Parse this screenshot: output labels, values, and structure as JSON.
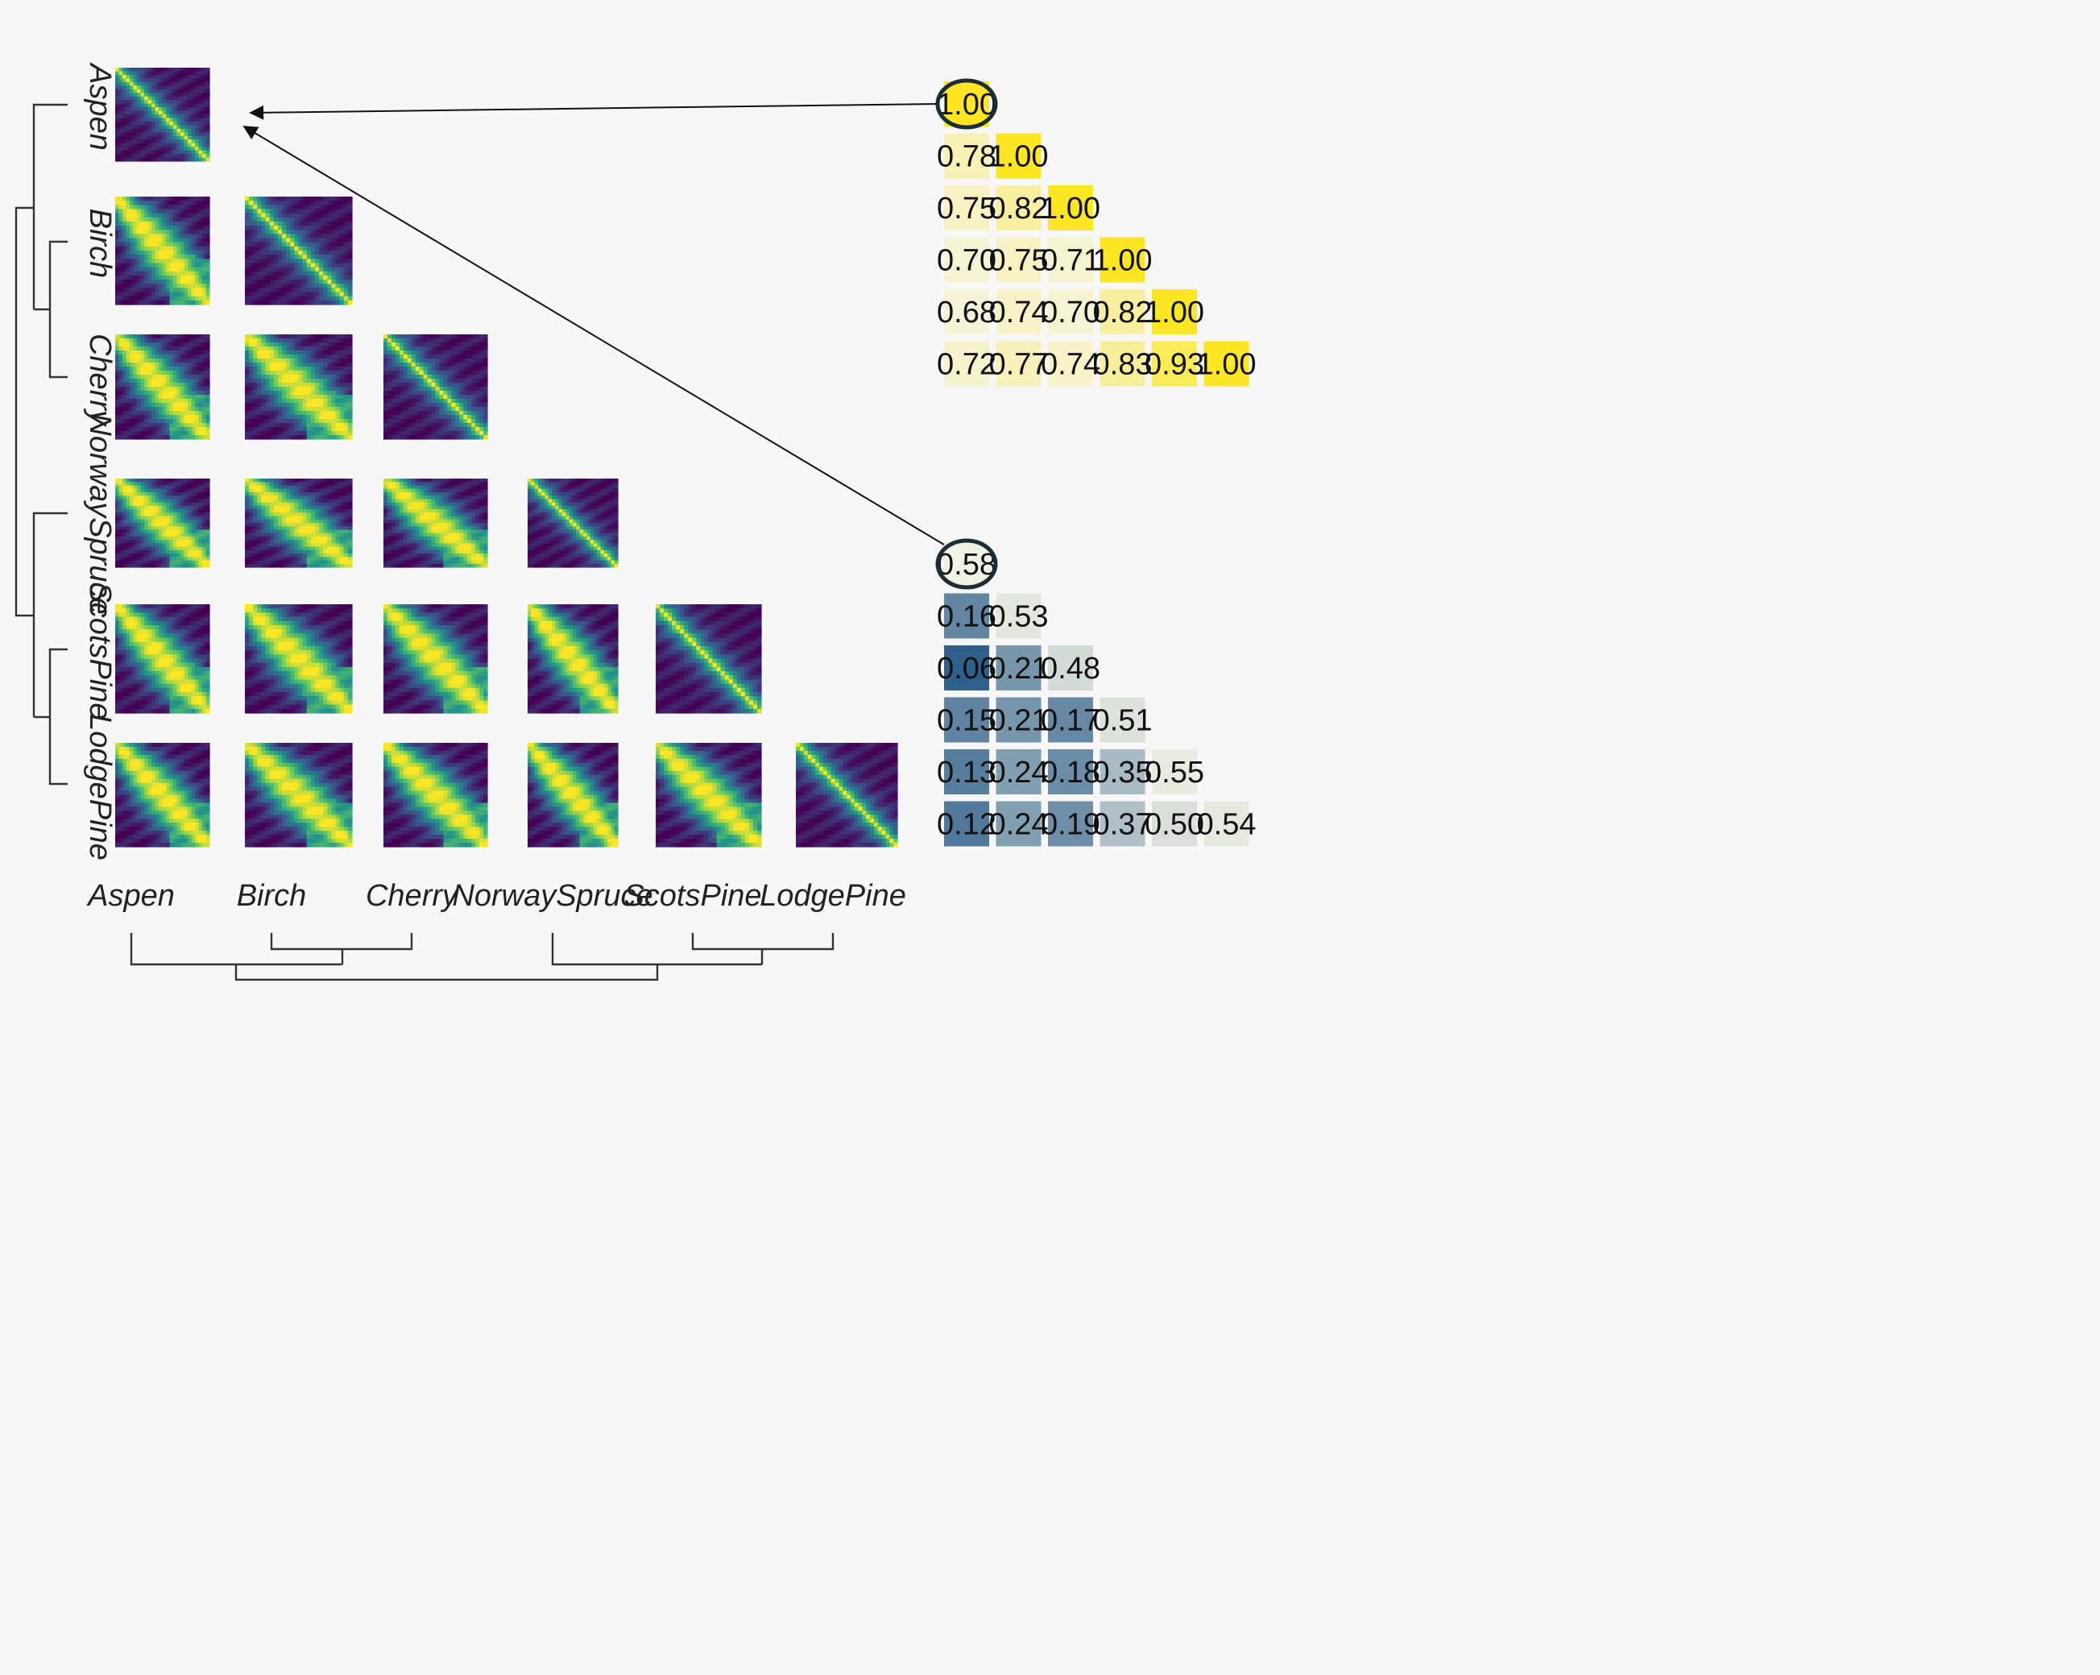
{
  "chart_data": [
    {
      "type": "heatmap",
      "description_role": "matrix grid of contact maps",
      "species": [
        "Aspen",
        "Birch",
        "Cherry",
        "NorwaySpruce",
        "ScotsPine",
        "LodgePine"
      ],
      "colorscale": [
        "#440154",
        "#3b528b",
        "#21918c",
        "#5ec962",
        "#fde725"
      ]
    },
    {
      "type": "table",
      "panel": "upper",
      "rows": [
        [
          "1.00"
        ],
        [
          "0.78",
          "1.00"
        ],
        [
          "0.75",
          "0.82",
          "1.00"
        ],
        [
          "0.70",
          "0.75",
          "0.71",
          "1.00"
        ],
        [
          "0.68",
          "0.74",
          "0.70",
          "0.82",
          "1.00"
        ],
        [
          "0.72",
          "0.77",
          "0.74",
          "0.83",
          "0.93",
          "1.00"
        ]
      ],
      "highlighted": "1.00"
    },
    {
      "type": "table",
      "panel": "lower",
      "rows": [
        [
          "0.58"
        ],
        [
          "0.16",
          "0.53"
        ],
        [
          "0.06",
          "0.21",
          "0.48"
        ],
        [
          "0.15",
          "0.21",
          "0.17",
          "0.51"
        ],
        [
          "0.13",
          "0.24",
          "0.18",
          "0.35",
          "0.55"
        ],
        [
          "0.12",
          "0.24",
          "0.19",
          "0.37",
          "0.50",
          "0.54"
        ]
      ],
      "highlighted": "0.58"
    }
  ],
  "colors": {
    "background": "#f7f7f7",
    "high": "#fde725",
    "low": "#2f5f8a",
    "ring": "#1c2e35",
    "line": "#111111"
  }
}
